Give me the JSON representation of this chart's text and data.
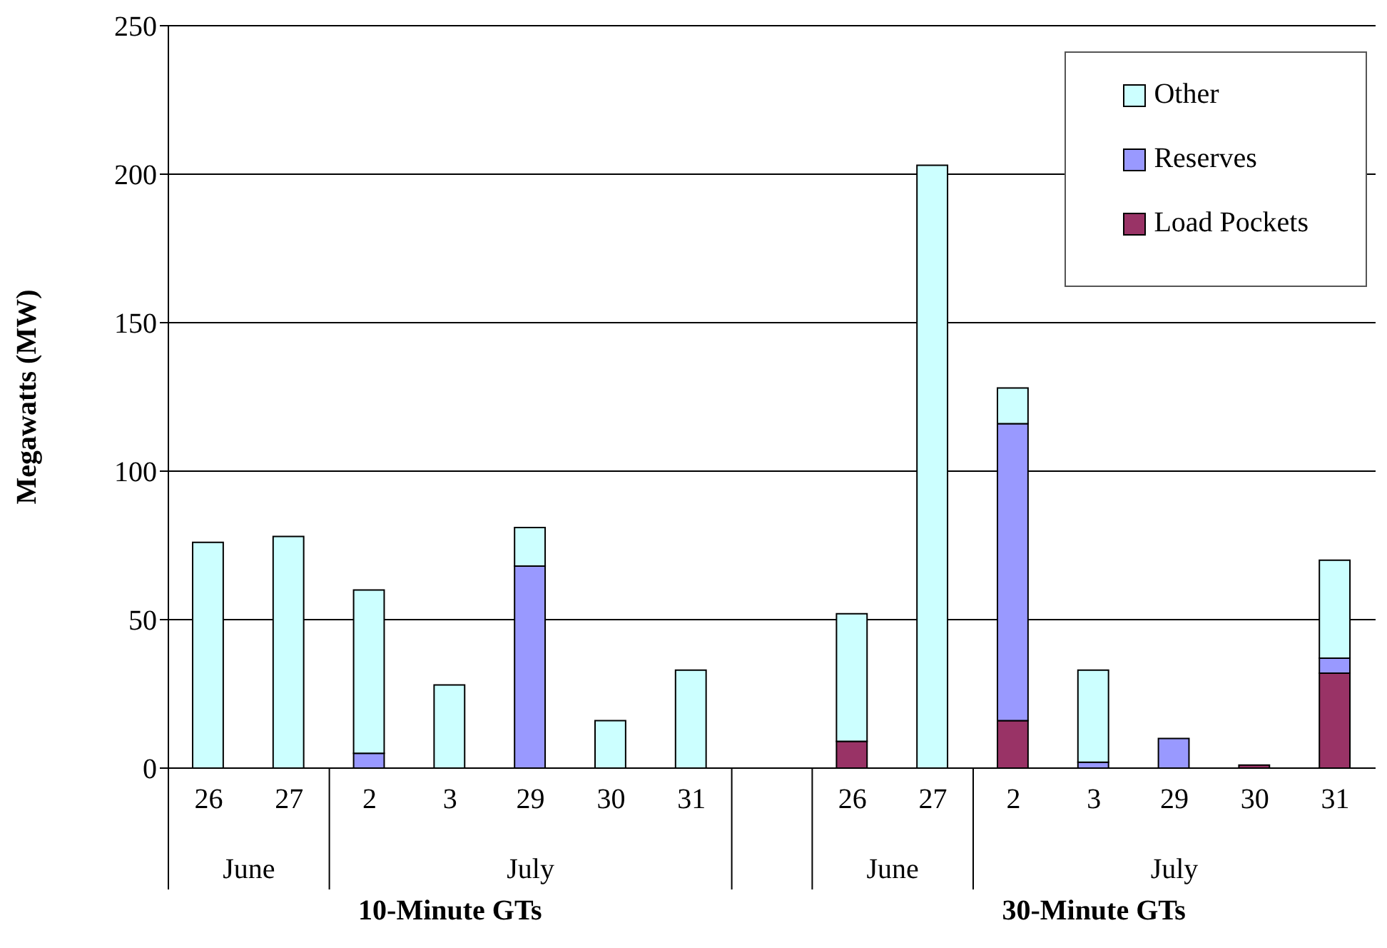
{
  "chart_data": {
    "type": "bar",
    "stacked": true,
    "ylabel": "Megawatts (MW)",
    "categories": [
      "26",
      "27",
      "2",
      "3",
      "29",
      "30",
      "31",
      null,
      "26",
      "27",
      "2",
      "3",
      "29",
      "30",
      "31"
    ],
    "series": [
      {
        "name": "Load Pockets",
        "color": "#993366",
        "values": [
          null,
          null,
          null,
          null,
          null,
          null,
          null,
          null,
          9,
          null,
          16,
          null,
          null,
          1,
          32
        ]
      },
      {
        "name": "Reserves",
        "color": "#9999ff",
        "values": [
          null,
          null,
          5,
          null,
          68,
          null,
          null,
          null,
          null,
          null,
          100,
          2,
          10,
          null,
          5
        ]
      },
      {
        "name": "Other",
        "color": "#ccffff",
        "values": [
          76,
          78,
          55,
          28,
          13,
          16,
          33,
          null,
          43,
          203,
          12,
          31,
          null,
          null,
          33
        ]
      }
    ],
    "ylim": [
      0,
      250
    ],
    "yticks": [
      0,
      50,
      100,
      150,
      200,
      250
    ],
    "grid": "y",
    "legend": "top right",
    "annotations": [
      "June",
      "July",
      "June",
      "July",
      "10-Minute GTs",
      "30-Minute GTs"
    ]
  }
}
